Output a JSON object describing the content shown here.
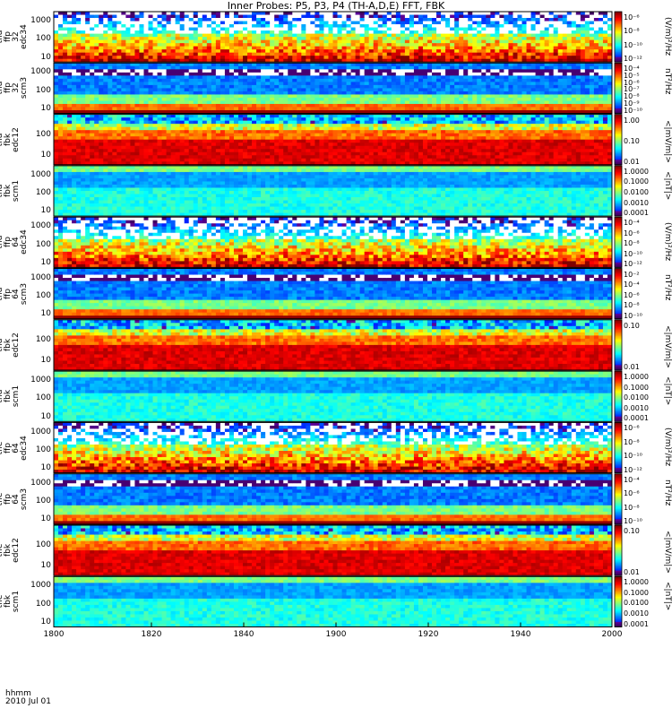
{
  "chart_data": {
    "type": "heatmap",
    "title": "Inner Probes: P5, P3, P4 (TH-A,D,E) FFT, FBK",
    "x_ticks": [
      "1800",
      "1820",
      "1840",
      "1860",
      "1880",
      "1900",
      "1920",
      "1940",
      "2000"
    ],
    "x_range": [
      "18:00",
      "20:00"
    ],
    "footer": {
      "label1": "hhmm",
      "label2": "2010 Jul 01"
    },
    "panels": [
      {
        "ylabel": [
          "tha",
          "ffp",
          "32",
          "edc34"
        ],
        "yticks": [
          "1000",
          "100",
          "10"
        ],
        "cb_label": "(V/m)²/Hz",
        "cb_ticks": [
          "10⁻⁶",
          "10⁻⁸",
          "10⁻¹⁰",
          "10⁻¹²"
        ],
        "kind": "e_spec"
      },
      {
        "ylabel": [
          "tha",
          "ffp",
          "32",
          "scm3"
        ],
        "yticks": [
          "1000",
          "100",
          "10"
        ],
        "cb_label": "nT²/Hz",
        "cb_ticks": [
          "10⁻⁴",
          "10⁻⁵",
          "10⁻⁶",
          "10⁻⁷",
          "10⁻⁸",
          "10⁻⁹",
          "10⁻¹⁰"
        ],
        "kind": "b_spec"
      },
      {
        "ylabel": [
          "tha",
          "fbk",
          "edc12"
        ],
        "yticks": [
          "100",
          "10"
        ],
        "cb_label": "<|mV/m|>",
        "cb_ticks": [
          "1.00",
          "0.10",
          "0.01"
        ],
        "kind": "e_fbk"
      },
      {
        "ylabel": [
          "tha",
          "fbk",
          "scm1"
        ],
        "yticks": [
          "1000",
          "100",
          "10"
        ],
        "cb_label": "<|nT|>",
        "cb_ticks": [
          "1.0000",
          "0.1000",
          "0.0100",
          "0.0010",
          "0.0001"
        ],
        "kind": "b_fbk"
      },
      {
        "ylabel": [
          "thd",
          "ffp",
          "64",
          "edc34"
        ],
        "yticks": [
          "1000",
          "100",
          "10"
        ],
        "cb_label": "(V/m)²/Hz",
        "cb_ticks": [
          "10⁻⁴",
          "10⁻⁶",
          "10⁻⁸",
          "10⁻¹⁰",
          "10⁻¹²"
        ],
        "kind": "e_spec"
      },
      {
        "ylabel": [
          "thd",
          "ffp",
          "64",
          "scm3"
        ],
        "yticks": [
          "1000",
          "100",
          "10"
        ],
        "cb_label": "nT²/Hz",
        "cb_ticks": [
          "10⁻²",
          "10⁻⁴",
          "10⁻⁶",
          "10⁻⁸",
          "10⁻¹⁰"
        ],
        "kind": "b_spec"
      },
      {
        "ylabel": [
          "thd",
          "fbk",
          "edc12"
        ],
        "yticks": [
          "100",
          "10"
        ],
        "cb_label": "<|mV/m|>",
        "cb_ticks": [
          "0.10",
          "0.01"
        ],
        "kind": "e_fbk"
      },
      {
        "ylabel": [
          "thd",
          "fbk",
          "scm1"
        ],
        "yticks": [
          "1000",
          "100",
          "10"
        ],
        "cb_label": "<|nT|>",
        "cb_ticks": [
          "1.0000",
          "0.1000",
          "0.0100",
          "0.0010",
          "0.0001"
        ],
        "kind": "b_fbk"
      },
      {
        "ylabel": [
          "the",
          "ffp",
          "64",
          "edc34"
        ],
        "yticks": [
          "1000",
          "100",
          "10"
        ],
        "cb_label": "(V/m)²/Hz",
        "cb_ticks": [
          "10⁻⁶",
          "10⁻⁸",
          "10⁻¹⁰",
          "10⁻¹²"
        ],
        "kind": "e_spec"
      },
      {
        "ylabel": [
          "the",
          "ffp",
          "64",
          "scm3"
        ],
        "yticks": [
          "1000",
          "100",
          "10"
        ],
        "cb_label": "nT²/Hz",
        "cb_ticks": [
          "10⁻⁴",
          "10⁻⁶",
          "10⁻⁸",
          "10⁻¹⁰"
        ],
        "kind": "b_spec"
      },
      {
        "ylabel": [
          "the",
          "fbk",
          "edc12"
        ],
        "yticks": [
          "100",
          "10"
        ],
        "cb_label": "<|mV/m|>",
        "cb_ticks": [
          "0.10",
          "0.01"
        ],
        "kind": "e_fbk"
      },
      {
        "ylabel": [
          "the",
          "fbk",
          "scm1"
        ],
        "yticks": [
          "1000",
          "100",
          "10"
        ],
        "cb_label": "<|nT|>",
        "cb_ticks": [
          "1.0000",
          "0.1000",
          "0.0100",
          "0.0010",
          "0.0001"
        ],
        "kind": "b_fbk"
      }
    ]
  }
}
